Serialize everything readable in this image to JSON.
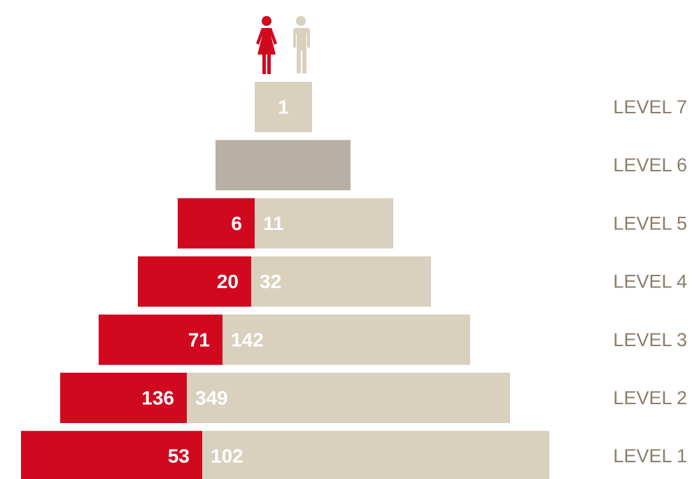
{
  "levels": [
    {
      "label": "LEVEL 7",
      "women": null,
      "men": 1
    },
    {
      "label": "LEVEL 6",
      "women": null,
      "men": null
    },
    {
      "label": "LEVEL 5",
      "women": 6,
      "men": 11
    },
    {
      "label": "LEVEL 4",
      "women": 20,
      "men": 32
    },
    {
      "label": "LEVEL 3",
      "women": 71,
      "men": 142
    },
    {
      "label": "LEVEL 2",
      "women": 136,
      "men": 349
    },
    {
      "label": "LEVEL 1",
      "women": 53,
      "men": 102
    }
  ]
}
